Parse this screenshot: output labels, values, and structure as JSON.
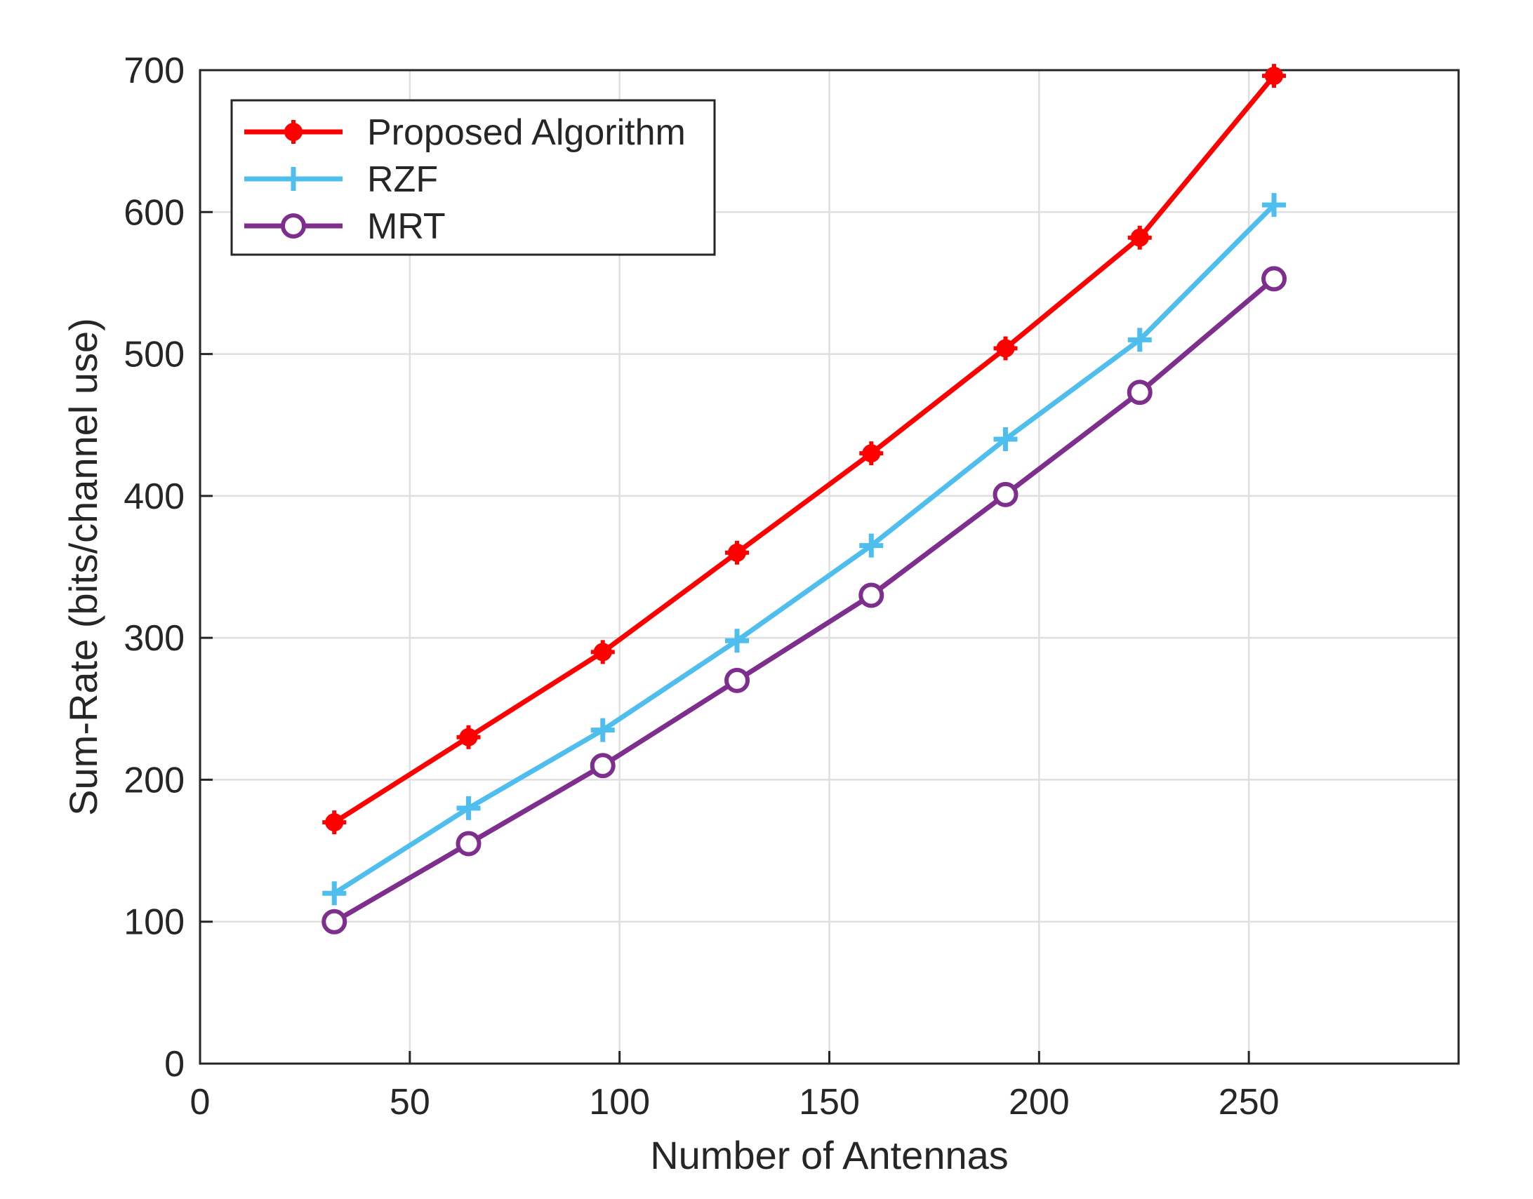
{
  "chart_data": {
    "type": "line",
    "title": "",
    "xlabel": "Number of Antennas",
    "ylabel": "Sum-Rate (bits/channel use)",
    "xlim": [
      0,
      300
    ],
    "ylim": [
      0,
      700
    ],
    "xticks": [
      0,
      50,
      100,
      150,
      200,
      250
    ],
    "yticks": [
      0,
      100,
      200,
      300,
      400,
      500,
      600,
      700
    ],
    "grid": true,
    "legend_position": "top-left",
    "x": [
      32,
      64,
      96,
      128,
      160,
      192,
      224,
      256
    ],
    "series": [
      {
        "name": "Proposed Algorithm",
        "color": "#ff0000",
        "marker": "filled-circle-plus",
        "values": [
          170,
          230,
          290,
          360,
          430,
          504,
          582,
          696
        ]
      },
      {
        "name": "RZF",
        "color": "#4dbeee",
        "marker": "plus",
        "values": [
          120,
          180,
          235,
          298,
          365,
          440,
          510,
          605
        ]
      },
      {
        "name": "MRT",
        "color": "#7e2f8e",
        "marker": "open-circle",
        "values": [
          100,
          155,
          210,
          270,
          330,
          401,
          473,
          553
        ]
      }
    ]
  }
}
